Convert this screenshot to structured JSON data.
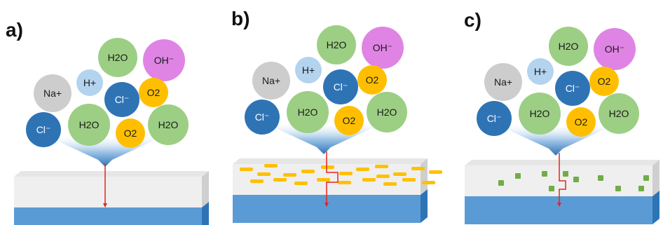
{
  "panels": [
    {
      "label": "a)",
      "ions": [
        {
          "text": "H2O",
          "kind": "water"
        },
        {
          "text": "OH⁻",
          "kind": "hydroxide"
        },
        {
          "text": "H+",
          "kind": "hydrogen"
        },
        {
          "text": "Na+",
          "kind": "sodium"
        },
        {
          "text": "Cl⁻",
          "kind": "chloride"
        },
        {
          "text": "O2",
          "kind": "oxygen"
        },
        {
          "text": "Cl⁻",
          "kind": "chloride"
        },
        {
          "text": "H2O",
          "kind": "water"
        },
        {
          "text": "O2",
          "kind": "oxygen"
        },
        {
          "text": "H2O",
          "kind": "water"
        }
      ]
    },
    {
      "label": "b)",
      "ions": [
        {
          "text": "H2O",
          "kind": "water"
        },
        {
          "text": "OH⁻",
          "kind": "hydroxide"
        },
        {
          "text": "H+",
          "kind": "hydrogen"
        },
        {
          "text": "Na+",
          "kind": "sodium"
        },
        {
          "text": "Cl⁻",
          "kind": "chloride"
        },
        {
          "text": "O2",
          "kind": "oxygen"
        },
        {
          "text": "Cl⁻",
          "kind": "chloride"
        },
        {
          "text": "H2O",
          "kind": "water"
        },
        {
          "text": "O2",
          "kind": "oxygen"
        },
        {
          "text": "H2O",
          "kind": "water"
        }
      ]
    },
    {
      "label": "c)",
      "ions": [
        {
          "text": "H2O",
          "kind": "water"
        },
        {
          "text": "OH⁻",
          "kind": "hydroxide"
        },
        {
          "text": "H+",
          "kind": "hydrogen"
        },
        {
          "text": "Na+",
          "kind": "sodium"
        },
        {
          "text": "Cl⁻",
          "kind": "chloride"
        },
        {
          "text": "O2",
          "kind": "oxygen"
        },
        {
          "text": "Cl⁻",
          "kind": "chloride"
        },
        {
          "text": "H2O",
          "kind": "water"
        },
        {
          "text": "O2",
          "kind": "oxygen"
        },
        {
          "text": "H2O",
          "kind": "water"
        }
      ]
    }
  ],
  "colors": {
    "water": "#9ccf84",
    "hydroxide": "#df84e4",
    "hydrogen": "#b3d3ef",
    "sodium": "#cdcdcd",
    "chloride": "#2e74b5",
    "oxygen": "#ffbf00",
    "funnel": "#2e74b5",
    "coating": "#efefef",
    "substrate": "#5b9bd5",
    "crack": "#e8231c",
    "platelet": "#ffc000",
    "cube": "#70ad47"
  }
}
